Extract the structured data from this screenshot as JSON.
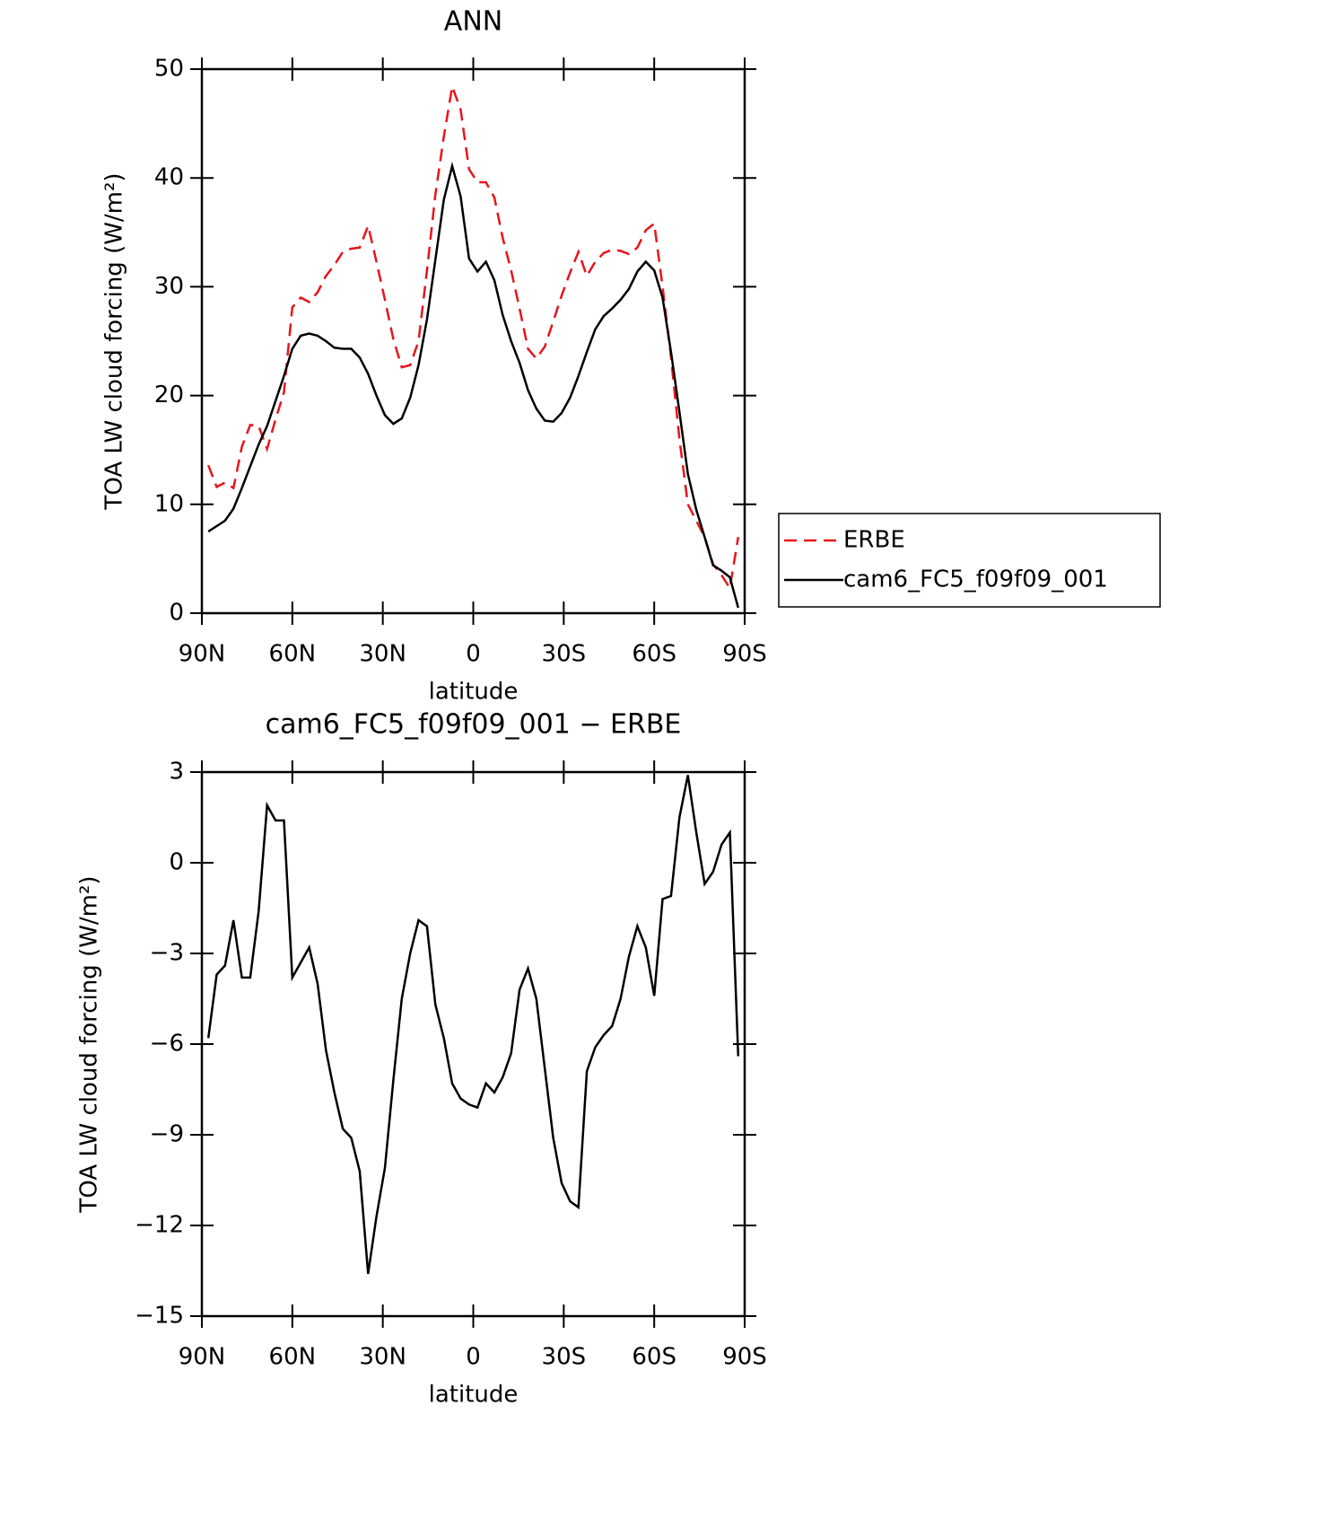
{
  "chart_data": [
    {
      "type": "line",
      "title": "ANN",
      "x_label": "latitude",
      "y_label": "TOA LW cloud forcing (W/m²)",
      "x": [
        87.86,
        85.1,
        82.31,
        79.53,
        76.74,
        73.95,
        71.16,
        68.37,
        65.58,
        62.79,
        60.0,
        57.21,
        54.42,
        51.63,
        48.84,
        46.05,
        43.26,
        40.47,
        37.67,
        34.88,
        32.09,
        29.3,
        26.51,
        23.72,
        20.93,
        18.14,
        15.35,
        12.56,
        9.77,
        6.98,
        4.19,
        1.4,
        -1.4,
        -4.19,
        -6.98,
        -9.77,
        -12.56,
        -15.35,
        -18.14,
        -20.93,
        -23.72,
        -26.51,
        -29.3,
        -32.09,
        -34.88,
        -37.67,
        -40.47,
        -43.26,
        -46.05,
        -48.84,
        -51.63,
        -54.42,
        -57.21,
        -60.0,
        -62.79,
        -65.58,
        -68.37,
        -71.16,
        -73.95,
        -76.74,
        -79.53,
        -82.31,
        -85.1,
        -87.86
      ],
      "series": [
        {
          "name": "ERBE",
          "color": "#e8141c",
          "dash": true,
          "values": [
            13.6,
            11.6,
            12.0,
            11.5,
            15.3,
            17.3,
            17.2,
            15.1,
            17.8,
            20.3,
            28.1,
            29.0,
            28.6,
            29.5,
            31.0,
            32.0,
            33.2,
            33.5,
            33.6,
            35.6,
            32.3,
            28.8,
            25.2,
            22.6,
            22.8,
            25.0,
            31.5,
            38.5,
            43.8,
            48.4,
            46.3,
            40.8,
            39.6,
            39.6,
            38.2,
            34.5,
            31.5,
            28.0,
            24.3,
            23.4,
            24.5,
            26.8,
            29.2,
            31.3,
            33.2,
            31.0,
            32.3,
            33.1,
            33.4,
            33.3,
            33.0,
            33.6,
            35.2,
            35.8,
            30.0,
            23.5,
            16.0,
            10.0,
            8.5,
            7.0,
            4.5,
            3.5,
            2.3,
            7.0
          ]
        },
        {
          "name": "cam6_FC5_f09f09_001",
          "color": "#000000",
          "dash": false,
          "values": [
            7.5,
            8.0,
            8.5,
            9.6,
            11.5,
            13.5,
            15.5,
            17.2,
            19.5,
            21.8,
            24.3,
            25.5,
            25.7,
            25.5,
            25.0,
            24.4,
            24.3,
            24.3,
            23.5,
            22.0,
            20.0,
            18.2,
            17.4,
            17.9,
            19.8,
            22.8,
            27.0,
            32.5,
            38.0,
            41.1,
            38.3,
            32.6,
            31.4,
            32.3,
            30.6,
            27.4,
            25.0,
            23.0,
            20.5,
            18.8,
            17.7,
            17.6,
            18.4,
            19.8,
            21.8,
            24.0,
            26.1,
            27.3,
            28.0,
            28.8,
            29.8,
            31.4,
            32.3,
            31.5,
            29.0,
            24.0,
            18.5,
            12.8,
            9.5,
            7.0,
            4.4,
            3.9,
            3.3,
            0.5
          ]
        }
      ],
      "xlim": [
        90,
        -90
      ],
      "xticks": [
        {
          "value": 90,
          "label": "90N"
        },
        {
          "value": 60,
          "label": "60N"
        },
        {
          "value": 30,
          "label": "30N"
        },
        0,
        {
          "value": -30,
          "label": "30S"
        },
        {
          "value": -60,
          "label": "60S"
        },
        {
          "value": -90,
          "label": "90S"
        }
      ],
      "ylim": [
        0,
        50
      ],
      "yticks": [
        0,
        10,
        20,
        30,
        40,
        50
      ],
      "legend": "right"
    },
    {
      "type": "line",
      "title": "cam6_FC5_f09f09_001 − ERBE",
      "x_label": "latitude",
      "y_label": "TOA LW cloud forcing (W/m²)",
      "x": [
        87.86,
        85.1,
        82.31,
        79.53,
        76.74,
        73.95,
        71.16,
        68.37,
        65.58,
        62.79,
        60.0,
        57.21,
        54.42,
        51.63,
        48.84,
        46.05,
        43.26,
        40.47,
        37.67,
        34.88,
        32.09,
        29.3,
        26.51,
        23.72,
        20.93,
        18.14,
        15.35,
        12.56,
        9.77,
        6.98,
        4.19,
        1.4,
        -1.4,
        -4.19,
        -6.98,
        -9.77,
        -12.56,
        -15.35,
        -18.14,
        -20.93,
        -23.72,
        -26.51,
        -29.3,
        -32.09,
        -34.88,
        -37.67,
        -40.47,
        -43.26,
        -46.05,
        -48.84,
        -51.63,
        -54.42,
        -57.21,
        -60.0,
        -62.79,
        -65.58,
        -68.37,
        -71.16,
        -73.95,
        -76.74,
        -79.53,
        -82.31,
        -85.1,
        -87.86
      ],
      "values": [
        -5.8,
        -3.7,
        -3.4,
        -1.9,
        -3.8,
        -3.8,
        -1.6,
        1.9,
        1.4,
        1.4,
        -3.8,
        -3.3,
        -2.8,
        -4.0,
        -6.2,
        -7.6,
        -8.8,
        -9.1,
        -10.2,
        -13.6,
        -11.7,
        -10.1,
        -7.2,
        -4.5,
        -3.0,
        -1.9,
        -2.1,
        -4.7,
        -5.8,
        -7.3,
        -7.8,
        -8.0,
        -8.1,
        -7.3,
        -7.6,
        -7.1,
        -6.3,
        -4.2,
        -3.5,
        -4.5,
        -6.8,
        -9.1,
        -10.6,
        -11.2,
        -11.4,
        -6.9,
        -6.1,
        -5.7,
        -5.4,
        -4.5,
        -3.1,
        -2.1,
        -2.8,
        -4.4,
        -1.2,
        -1.1,
        1.5,
        2.9,
        1.0,
        -0.7,
        -0.3,
        0.6,
        1.0,
        -6.4
      ],
      "color": "#000000",
      "xlim": [
        90,
        -90
      ],
      "xticks": [
        {
          "value": 90,
          "label": "90N"
        },
        {
          "value": 60,
          "label": "60N"
        },
        {
          "value": 30,
          "label": "30N"
        },
        0,
        {
          "value": -30,
          "label": "30S"
        },
        {
          "value": -60,
          "label": "60S"
        },
        {
          "value": -90,
          "label": "90S"
        }
      ],
      "ylim": [
        -15,
        3
      ],
      "yticks": [
        {
          "value": -15,
          "label": "−15"
        },
        {
          "value": -12,
          "label": "−12"
        },
        {
          "value": -9,
          "label": "−9"
        },
        {
          "value": -6,
          "label": "−6"
        },
        {
          "value": -3,
          "label": "−3"
        },
        0,
        3
      ]
    }
  ]
}
